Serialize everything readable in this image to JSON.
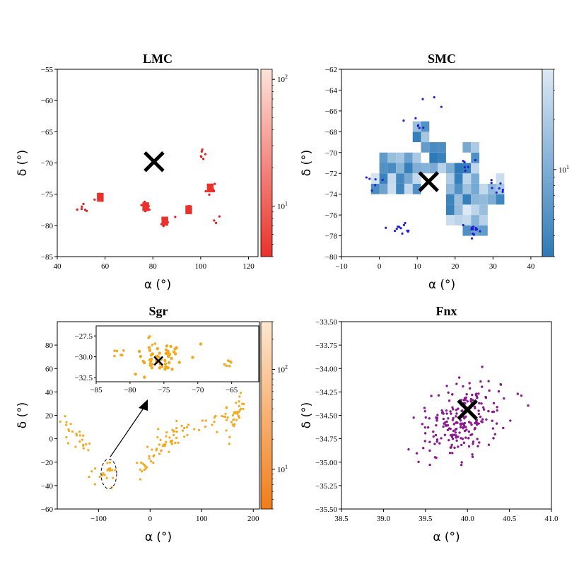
{
  "chart_data": [
    {
      "type": "heatmap",
      "title": "LMC",
      "xlabel": "α (°)",
      "ylabel": "δ (°)",
      "xlim": [
        40,
        124
      ],
      "ylim": [
        -85,
        -55
      ],
      "xticks": [
        40,
        60,
        80,
        100,
        120
      ],
      "yticks": [
        -85,
        -80,
        -75,
        -70,
        -65,
        -60,
        -55
      ],
      "colorbar": {
        "colormap": "Reds_r",
        "scale": "log",
        "low": "#e8322b",
        "high": "#fde3d9",
        "tick_labels": [
          {
            "value": 10,
            "text": "10^1"
          },
          {
            "value": 100,
            "text": "10^2"
          }
        ],
        "range": [
          4,
          120
        ]
      },
      "marker": {
        "x": 80.5,
        "y": -69.8,
        "symbol": "X"
      },
      "cells_approx_count": 60,
      "scatter_color": "#e41a1c",
      "clusters": [
        {
          "x": 50,
          "y": -77,
          "n": 6
        },
        {
          "x": 58,
          "y": -75.5,
          "n": 14
        },
        {
          "x": 77,
          "y": -77,
          "n": 8
        },
        {
          "x": 85,
          "y": -79.3,
          "n": 10
        },
        {
          "x": 95,
          "y": -77.5,
          "n": 8
        },
        {
          "x": 101,
          "y": -69,
          "n": 6
        },
        {
          "x": 104,
          "y": -74,
          "n": 10
        },
        {
          "x": 107,
          "y": -79,
          "n": 3
        }
      ]
    },
    {
      "type": "heatmap",
      "title": "SMC",
      "xlabel": "α (°)",
      "ylabel": "δ (°)",
      "xlim": [
        -10,
        43
      ],
      "ylim": [
        -80,
        -62
      ],
      "xticks": [
        -10,
        0,
        10,
        20,
        30,
        40
      ],
      "yticks": [
        -80,
        -78,
        -76,
        -74,
        -72,
        -70,
        -68,
        -66,
        -64,
        -62
      ],
      "colorbar": {
        "colormap": "Blues",
        "scale": "log",
        "low": "#2d7ab8",
        "high": "#dce9f5",
        "tick_labels": [
          {
            "value": 10,
            "text": "10^1"
          }
        ],
        "range": [
          3,
          40
        ]
      },
      "marker": {
        "x": 13,
        "y": -72.8,
        "symbol": "X"
      },
      "scatter_color": "#1f1fd6",
      "clusters": [
        {
          "x": 14.5,
          "y": -65.3,
          "n": 3
        },
        {
          "x": 10.5,
          "y": -67.3,
          "n": 6
        },
        {
          "x": 5.5,
          "y": -77.2,
          "n": 12
        },
        {
          "x": 24.5,
          "y": -77.5,
          "n": 14
        },
        {
          "x": -2.5,
          "y": -73,
          "n": 6
        },
        {
          "x": 30.5,
          "y": -73.3,
          "n": 8
        },
        {
          "x": 23.5,
          "y": -71,
          "n": 6
        }
      ]
    },
    {
      "type": "scatter",
      "title": "Sgr",
      "xlabel": "α (°)",
      "ylabel": "δ (°)",
      "xlim": [
        -180,
        212
      ],
      "ylim": [
        -60,
        100
      ],
      "xticks": [
        -100,
        0,
        100,
        200
      ],
      "yticks": [
        -60,
        -40,
        -20,
        0,
        20,
        40,
        60,
        80
      ],
      "colorbar": {
        "colormap": "Oranges_r",
        "scale": "log",
        "low": "#f07d1a",
        "high": "#fde6ce",
        "tick_labels": [
          {
            "value": 10,
            "text": "10^1"
          },
          {
            "value": 100,
            "text": "10^2"
          }
        ],
        "range": [
          4,
          300
        ]
      },
      "point_color": "#f4a81d",
      "inset": {
        "xlim": [
          -85,
          -61
        ],
        "ylim": [
          -33,
          -26.3
        ],
        "xticks": [
          -85,
          -80,
          -75,
          -70,
          -65
        ],
        "yticks": [
          -32.5,
          -30.0,
          -27.5
        ],
        "marker": {
          "x": -75.8,
          "y": -30.5,
          "symbol": "X"
        }
      },
      "highlight_ellipse": {
        "x": -80,
        "y": -30
      }
    },
    {
      "type": "scatter",
      "title": "Fnx",
      "xlabel": "α (°)",
      "ylabel": "δ (°)",
      "xlim": [
        38.5,
        41.0
      ],
      "ylim": [
        -35.5,
        -33.5
      ],
      "xticks": [
        38.5,
        39.0,
        39.5,
        40.0,
        40.5,
        41.0
      ],
      "yticks": [
        -35.5,
        -35.25,
        -35.0,
        -34.75,
        -34.5,
        -34.25,
        -34.0,
        -33.75,
        -33.5
      ],
      "point_color": "#8b1a8f",
      "marker": {
        "x": 40.0,
        "y": -34.44,
        "symbol": "X"
      },
      "n_points": 220,
      "center": [
        39.95,
        -34.55
      ]
    }
  ]
}
